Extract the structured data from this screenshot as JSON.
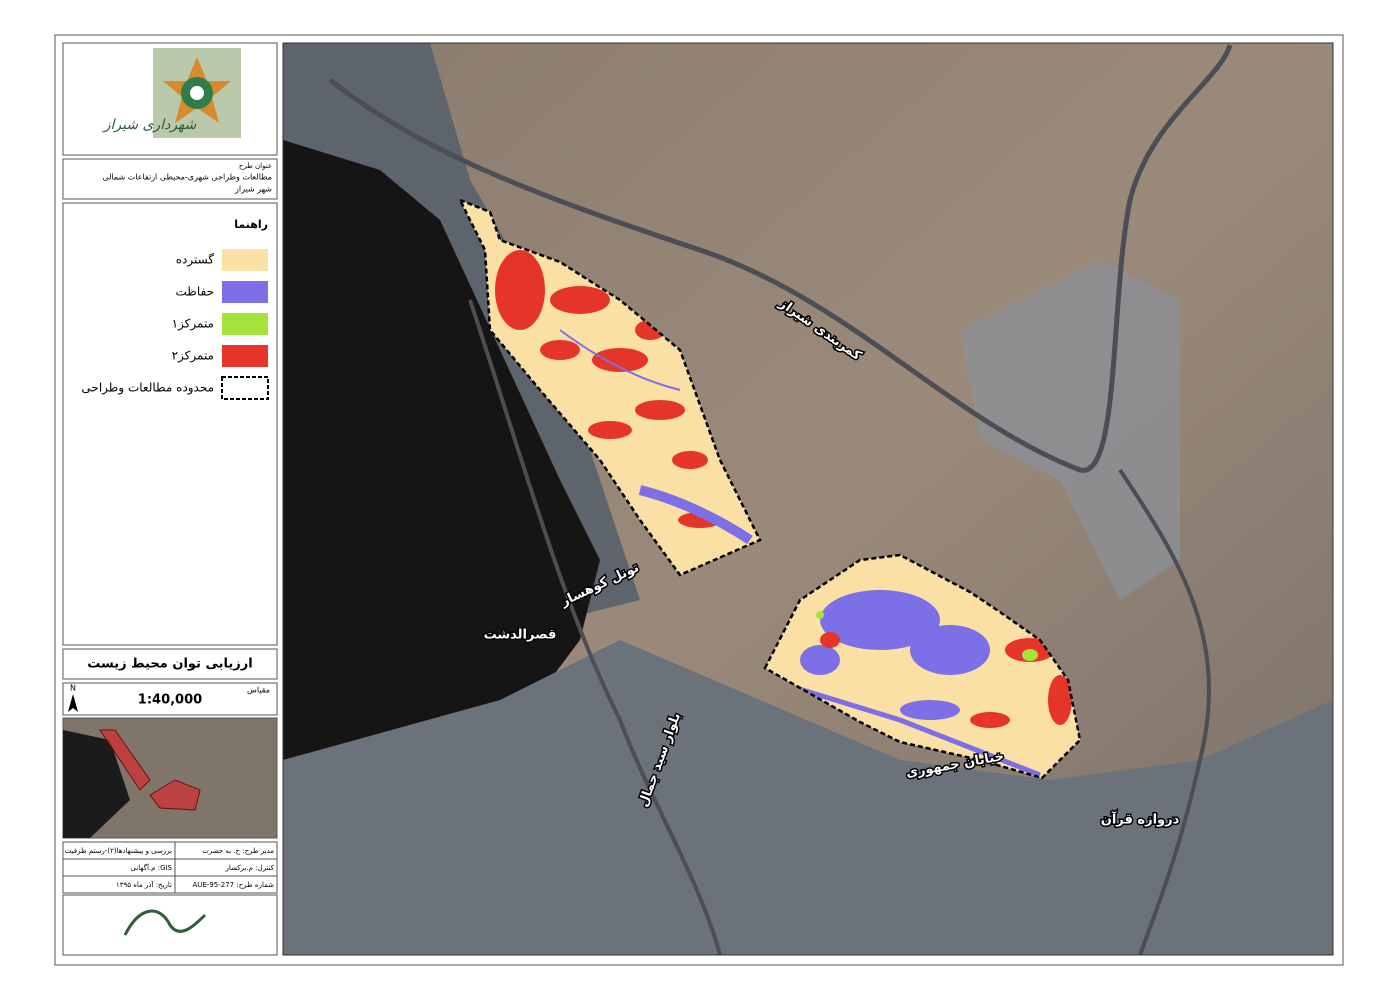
{
  "header": {
    "logo_text": "شهرداری شیراز",
    "project_label": "عنوان طرح",
    "project_title": "مطالعات وطراحی شهری-محیطی ارتفاعات شمالی",
    "city": "شهر شیراز"
  },
  "legend": {
    "title": "راهنما",
    "items": [
      {
        "label": "گسترده",
        "color": "#fbe0a6"
      },
      {
        "label": "حفاظت",
        "color": "#7d6fe6"
      },
      {
        "label": "متمرکز۱",
        "color": "#a4e33c"
      },
      {
        "label": "متمرکز۲",
        "color": "#e5352a"
      },
      {
        "label": "محدوده مطالعات وطراحی"
      }
    ]
  },
  "map_title": "ارزیابی توان محیط زیست",
  "scale": {
    "label": "مقیاس",
    "value": "1:40,000"
  },
  "north": "N",
  "info": {
    "rows": [
      [
        "مدیر طرح: خ. به حضرت",
        "بررسی و پیشنهادها(۲)-رستم ظرفیت"
      ],
      [
        "کنترل: م.برکسار",
        "GIS: م.آگهانی"
      ],
      [
        "شماره طرح: 277-95-AUE",
        "تاریخ: آذر ماه ۱۳۹۵"
      ]
    ]
  },
  "map_labels": [
    "کمربندی شیراز",
    "تونل کوهسار",
    "قصرالدشت",
    "بلوار سید جمال",
    "خیابان جمهوری",
    "دروازه قرآن"
  ]
}
